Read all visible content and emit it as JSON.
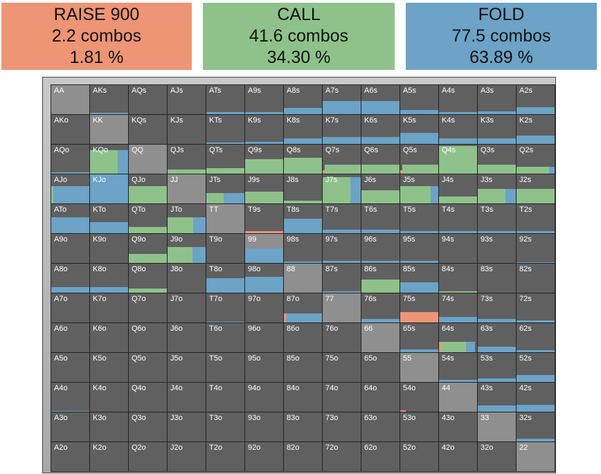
{
  "summary": {
    "raise": {
      "title": "RAISE 900",
      "combos": "2.2 combos",
      "percent": "1.81 %"
    },
    "call": {
      "title": "CALL",
      "combos": "41.6 combos",
      "percent": "34.30 %"
    },
    "fold": {
      "title": "FOLD",
      "combos": "77.5 combos",
      "percent": "63.89 %"
    }
  },
  "colors": {
    "raise": "#ed9575",
    "call": "#8ec28a",
    "fold": "#6ca3c6",
    "cell": "#606060",
    "pair_cell": "#8f8f8f"
  },
  "ranks": [
    "A",
    "K",
    "Q",
    "J",
    "T",
    "9",
    "8",
    "7",
    "6",
    "5",
    "4",
    "3",
    "2"
  ],
  "hands": {
    "AKs": {
      "f": 0.05
    },
    "ATs": {
      "f": 0.06
    },
    "A9s": {
      "f": 0.06
    },
    "A8s": {
      "f": 0.22
    },
    "A7s": {
      "f": 0.45
    },
    "A6s": {
      "f": 0.45
    },
    "A5s": {
      "f": 0.15
    },
    "A4s": {
      "f": 0.08
    },
    "A3s": {
      "f": 0.1
    },
    "A2s": {
      "f": 0.25
    },
    "KTs": {
      "f": 0.05
    },
    "K9s": {
      "f": 0.08
    },
    "K8s": {
      "f": 0.2
    },
    "K7s": {
      "f": 0.25
    },
    "K6s": {
      "f": 0.25
    },
    "K5s": {
      "f": 0.38
    },
    "K4s": {
      "f": 0.2
    },
    "K3s": {
      "f": 0.2
    },
    "K2s": {
      "f": 0.28
    },
    "AQo": {
      "f": 0.05
    },
    "KQo": {
      "c": 0.8,
      "cw": 0.72,
      "f": 0.8,
      "fw": 0.28
    },
    "QJs": {
      "c": 0.15
    },
    "QTs": {
      "c": 0.2
    },
    "Q9s": {
      "c": 0.5
    },
    "Q8s": {
      "c": 0.55
    },
    "Q7s": {
      "c": 0.3,
      "r": 0.12,
      "rw": 0.05
    },
    "Q6s": {
      "c": 0.3
    },
    "Q5s": {
      "c": 0.3,
      "r": 0.12,
      "rw": 0.06
    },
    "Q4s": {
      "c": 0.95
    },
    "Q3s": {
      "c": 0.3
    },
    "Q2s": {
      "c": 0.25,
      "f": 0.25,
      "fw": 0.15
    },
    "AJo": {
      "c": 0.6,
      "cw": 0.05,
      "f": 0.6,
      "fw": 0.95
    },
    "KJo": {
      "f": 1.0,
      "fw": 1.0
    },
    "QJo": {
      "c": 0.6
    },
    "J8s": {
      "c": 0.1
    },
    "JTs": {
      "c": 0.35,
      "cw": 0.45,
      "f": 0.35,
      "fw": 0.55
    },
    "J9s": {
      "c": 0.4
    },
    "J7s": {
      "c": 0.9,
      "cw": 0.72,
      "f": 0.9,
      "fw": 0.28
    },
    "J6s": {
      "c": 0.45
    },
    "J5s": {
      "c": 0.6,
      "cw": 0.8,
      "f": 0.6,
      "fw": 0.2
    },
    "J4s": {
      "c": 0.25
    },
    "J3s": {
      "c": 0.5,
      "cw": 0.72,
      "f": 0.5,
      "fw": 0.28
    },
    "J2s": {
      "c": 0.5
    },
    "ATo": {
      "f": 0.55
    },
    "KTo": {
      "f": 0.38
    },
    "QTo": {
      "c": 0.22
    },
    "JTo": {
      "c": 0.55,
      "cw": 0.68,
      "f": 0.55,
      "fw": 0.32
    },
    "T9s": {
      "r": 0.08
    },
    "T8s": {
      "f": 0.5
    },
    "T7s": {
      "f": 0.12
    },
    "T6s": {
      "f": 0.12
    },
    "T5s": {
      "f": 0.06
    },
    "T4s": {
      "f": 0.06
    },
    "T3s": {
      "f": 0.06
    },
    "T2s": {
      "f": 0.06
    },
    "Q9o": {
      "c": 0.3
    },
    "J9o": {
      "c": 0.55,
      "cw": 0.65,
      "f": 0.55,
      "fw": 0.35
    },
    "98s": {
      "f": 0.05
    },
    "97s": {
      "f": 0.08
    },
    "96s": {
      "f": 0.08
    },
    "95s": {
      "f": 0.06
    },
    "9: ": {},
    "92s": {
      "f": 0.02
    },
    "99": {
      "f": 0.5
    },
    "A8o": {
      "f": 0.2
    },
    "K8o": {
      "f": 0.2
    },
    "Q8o": {
      "c": 0.15
    },
    "T8o": {
      "f": 0.5
    },
    "98o": {
      "f": 0.55
    },
    "87s": {
      "f": 0.05
    },
    "86s": {
      "c": 0.45
    },
    "85s": {
      "f": 0.35
    },
    "84s": {
      "c": 0.05
    },
    "T7o": {
      "f": 0.02
    },
    "87o": {
      "f": 0.3,
      "r": 0.3,
      "rw": 0.05
    },
    "75s": {
      "r": 0.35
    },
    "74s": {
      "f": 0.18
    },
    "73s": {
      "f": 0.12
    },
    "72s": {
      "f": 0.06
    },
    "76s": {
      "f": 0.12
    },
    "65s": {
      "f": 0.1
    },
    "64s": {
      "f": 0.35,
      "fw": 0.25,
      "c": 0.35,
      "cw": 0.65,
      "r": 0.35,
      "rw": 0.05
    },
    "63s": {
      "f": 0.2
    },
    "62s": {
      "f": 0.08
    },
    "54s": {
      "f": 0.08
    },
    "53s": {
      "f": 0.12
    },
    "52s": {
      "f": 0.25
    },
    "43s": {
      "f": 0.22
    },
    "42s": {
      "f": 0.25
    },
    "A4o": {
      "f": 0.03
    },
    "54o": {
      "r": 0.05,
      "rw": 0.15
    },
    "32s": {
      "f": 0.1
    }
  }
}
